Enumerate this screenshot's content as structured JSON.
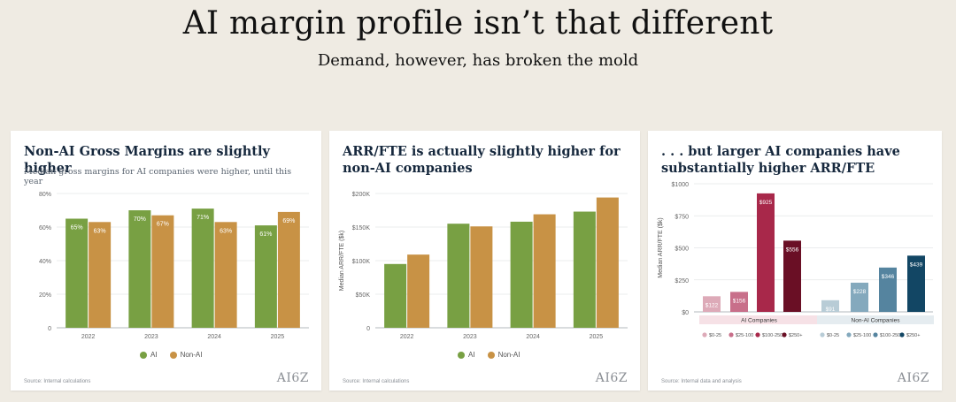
{
  "header": {
    "title": "AI margin profile isn’t that different",
    "subtitle": "Demand, however, has broken the mold"
  },
  "colors": {
    "ai": "#78a043",
    "non_ai": "#c89245",
    "ai_tiers": [
      "#ddaab8",
      "#c86f8a",
      "#a8284a",
      "#6a0f25"
    ],
    "non_ai_tiers": [
      "#b8ccd6",
      "#84a9bd",
      "#55849f",
      "#124664"
    ]
  },
  "logo_text": "AI6Z",
  "cards": [
    {
      "title": "Non-AI Gross Margins are slightly higher",
      "subtitle": "Median gross margins for AI companies were higher, until this year",
      "source": "Source: Internal calculations",
      "legend": [
        "AI",
        "Non-AI"
      ]
    },
    {
      "title": "ARR/FTE is actually slightly higher for non-AI companies",
      "subtitle": "",
      "source": "Source: Internal calculations",
      "legend": [
        "AI",
        "Non-AI"
      ]
    },
    {
      "title": ". . . but larger AI companies have substantially higher ARR/FTE",
      "subtitle": "",
      "source": "Source: Internal data and analysis",
      "legend_ai": [
        "$0-25",
        "$25-100",
        "$100-250",
        "$250+"
      ],
      "legend_non_ai": [
        "$0-25",
        "$25-100",
        "$100-250",
        "$250+"
      ]
    }
  ],
  "chart_data": [
    {
      "type": "bar",
      "title": "Non-AI Gross Margins are slightly higher",
      "subtitle": "Median gross margins for AI companies were higher, until this year",
      "categories": [
        "2022",
        "2023",
        "2024",
        "2025"
      ],
      "series": [
        {
          "name": "AI",
          "values": [
            65,
            70,
            71,
            61
          ],
          "labels": [
            "65%",
            "70%",
            "71%",
            "61%"
          ]
        },
        {
          "name": "Non-AI",
          "values": [
            63,
            67,
            63,
            69
          ],
          "labels": [
            "63%",
            "67%",
            "63%",
            "69%"
          ]
        }
      ],
      "ylim": [
        0,
        80
      ],
      "yticks": [
        0,
        20,
        40,
        60,
        80
      ],
      "ytick_labels": [
        "0",
        "20%",
        "40%",
        "60%",
        "80%"
      ],
      "grid": true,
      "legend": "bottom"
    },
    {
      "type": "bar",
      "title": "ARR/FTE is actually slightly higher for non-AI companies",
      "categories": [
        "2022",
        "2023",
        "2024",
        "2025"
      ],
      "series": [
        {
          "name": "AI",
          "values": [
            95,
            155,
            158,
            173
          ]
        },
        {
          "name": "Non-AI",
          "values": [
            109,
            151,
            169,
            194
          ]
        }
      ],
      "ylabel": "Median ARR/FTE ($k)",
      "ylim": [
        0,
        200
      ],
      "yticks": [
        0,
        50,
        100,
        150,
        200
      ],
      "ytick_labels": [
        "0",
        "$50K",
        "$100K",
        "$150K",
        "$200K"
      ],
      "grid": true,
      "legend": "bottom"
    },
    {
      "type": "bar",
      "title": ". . . but larger AI companies have substantially higher ARR/FTE",
      "ylabel": "Median ARR/FTE ($k)",
      "groups": [
        {
          "name": "AI Companies",
          "categories": [
            "$0-25",
            "$25-100",
            "$100-250",
            "$250+"
          ],
          "values": [
            122,
            156,
            925,
            556
          ],
          "labels": [
            "$122",
            "$156",
            "$925",
            "$556"
          ]
        },
        {
          "name": "Non-AI Companies",
          "categories": [
            "$0-25",
            "$25-100",
            "$100-250",
            "$250+"
          ],
          "values": [
            91,
            228,
            346,
            439
          ],
          "labels": [
            "$91",
            "$228",
            "$346",
            "$439"
          ]
        }
      ],
      "ylim": [
        0,
        1000
      ],
      "yticks": [
        0,
        250,
        500,
        750,
        1000
      ],
      "ytick_labels": [
        "$0",
        "$250",
        "$500",
        "$750",
        "$1000"
      ],
      "grid": true,
      "legend": "bottom"
    }
  ]
}
